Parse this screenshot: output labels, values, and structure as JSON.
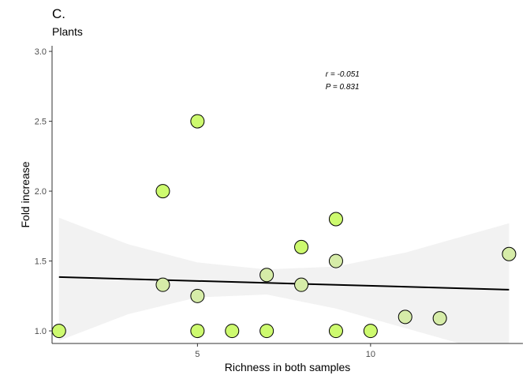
{
  "chart_data": {
    "type": "scatter",
    "title": "C.",
    "subtitle": "Plants",
    "xlabel": "Richness in both samples",
    "ylabel": "Fold increase",
    "xlim": [
      0.8,
      14.4
    ],
    "ylim": [
      0.91,
      3.04
    ],
    "x_ticks": [
      5,
      10
    ],
    "y_ticks": [
      1.0,
      1.5,
      2.0,
      2.5,
      3.0
    ],
    "x_tick_labels": [
      "5",
      "10"
    ],
    "y_tick_labels": [
      "1.0",
      "1.5",
      "2.0",
      "2.5",
      "3.0"
    ],
    "grid": false,
    "annotations": [
      "r = -0.051",
      "P = 0.831"
    ],
    "annotation_anchor": {
      "x": 8.7,
      "y": 2.82
    },
    "regression": {
      "x": [
        1,
        14
      ],
      "y": [
        1.385,
        1.295
      ]
    },
    "confidence_band": {
      "x": [
        1,
        3,
        5,
        7,
        9,
        11,
        12,
        13,
        14
      ],
      "lower": [
        0.93,
        1.12,
        1.24,
        1.26,
        1.16,
        1.02,
        0.95,
        0.88,
        0.82
      ],
      "upper": [
        1.81,
        1.62,
        1.49,
        1.44,
        1.46,
        1.56,
        1.63,
        1.7,
        1.77
      ]
    },
    "points": [
      {
        "x": 1,
        "y": 1.0,
        "c": "bright"
      },
      {
        "x": 4,
        "y": 2.0,
        "c": "bright"
      },
      {
        "x": 4,
        "y": 1.33,
        "c": "pale"
      },
      {
        "x": 5,
        "y": 2.5,
        "c": "bright"
      },
      {
        "x": 5,
        "y": 1.25,
        "c": "pale"
      },
      {
        "x": 5,
        "y": 1.0,
        "c": "bright"
      },
      {
        "x": 6,
        "y": 1.0,
        "c": "bright"
      },
      {
        "x": 7,
        "y": 1.4,
        "c": "pale"
      },
      {
        "x": 7,
        "y": 1.0,
        "c": "bright"
      },
      {
        "x": 8,
        "y": 1.6,
        "c": "bright"
      },
      {
        "x": 8,
        "y": 1.33,
        "c": "pale"
      },
      {
        "x": 9,
        "y": 1.8,
        "c": "bright"
      },
      {
        "x": 9,
        "y": 1.5,
        "c": "pale"
      },
      {
        "x": 9,
        "y": 1.0,
        "c": "bright"
      },
      {
        "x": 10,
        "y": 1.0,
        "c": "bright"
      },
      {
        "x": 11,
        "y": 1.1,
        "c": "pale"
      },
      {
        "x": 12,
        "y": 1.09,
        "c": "pale"
      },
      {
        "x": 14,
        "y": 1.55,
        "c": "pale"
      }
    ],
    "colors": {
      "bright": "#cdfa6f",
      "pale": "#d6eca8",
      "point_stroke": "#000000",
      "band": "#f2f2f2",
      "line": "#000000",
      "axis": "#333333",
      "tick_label": "#4d4d4d"
    }
  }
}
